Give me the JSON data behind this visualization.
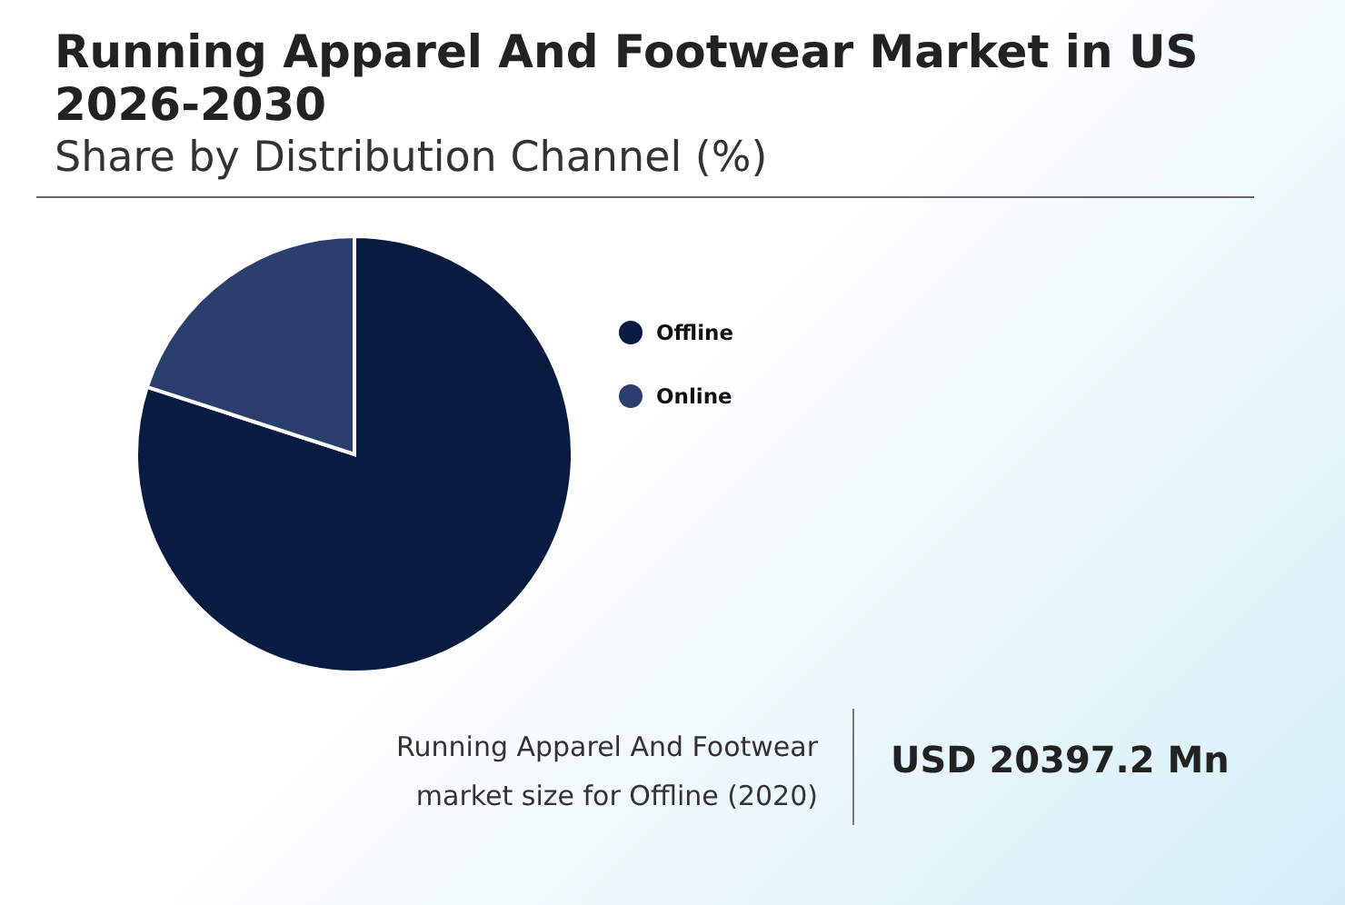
{
  "chart_data": {
    "type": "pie",
    "title": "Running Apparel And Footwear Market in US 2026-2030",
    "subtitle": "Share by Distribution Channel (%)",
    "categories": [
      "Offline",
      "Online"
    ],
    "values": [
      80,
      20
    ],
    "colors": [
      "#081c42",
      "#2a3f6e"
    ],
    "legend": "right",
    "annotations": [
      "Running Apparel And Footwear market size for Offline (2020)",
      "USD 20397.2 Mn"
    ]
  }
}
